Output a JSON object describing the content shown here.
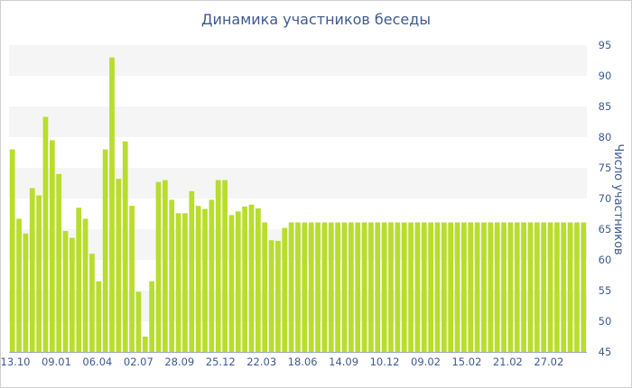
{
  "chart_data": {
    "type": "bar",
    "title": "Динамика участников беседы",
    "ylabel": "Число участников",
    "xlabel": "",
    "ylim": [
      45,
      95
    ],
    "yticks": [
      45,
      50,
      55,
      60,
      65,
      70,
      75,
      80,
      85,
      90,
      95
    ],
    "x_tick_labels": [
      "13.10",
      "09.01",
      "06.04",
      "02.07",
      "28.09",
      "25.12",
      "22.03",
      "18.06",
      "14.09",
      "10.12",
      "09.02",
      "15.02",
      "21.02",
      "27.02"
    ],
    "values": [
      78,
      66.7,
      64.3,
      71.7,
      70.5,
      83.3,
      79.5,
      74,
      64.7,
      63.6,
      68.5,
      66.7,
      61,
      56.5,
      78,
      93,
      73.2,
      79.3,
      68.8,
      54.8,
      47.5,
      56.5,
      72.7,
      73,
      69.8,
      67.6,
      67.6,
      71.2,
      68.8,
      68.3,
      69.8,
      73,
      73,
      67.3,
      67.9,
      68.7,
      69,
      68.4,
      66.1,
      63.2,
      63.1,
      65.2,
      66.1,
      66.1,
      66.1,
      66.1,
      66.1,
      66.1,
      66.1,
      66.1,
      66.1,
      66.1,
      66.1,
      66.1,
      66.1,
      66.1,
      66.1,
      66.1,
      66.1,
      66.1,
      66.1,
      66.1,
      66.1,
      66.1,
      66.1,
      66.1,
      66.1,
      66.1,
      66.1,
      66.1,
      66.1,
      66.1,
      66.1,
      66.1,
      66.1,
      66.1,
      66.1,
      66.1,
      66.1,
      66.1,
      66.1,
      66.1,
      66.1,
      66.1,
      66.1,
      66.1,
      66.1
    ],
    "bar_color": "#b8dd2c",
    "band_color": "#f5f5f5",
    "grid": false,
    "legend": "none"
  }
}
